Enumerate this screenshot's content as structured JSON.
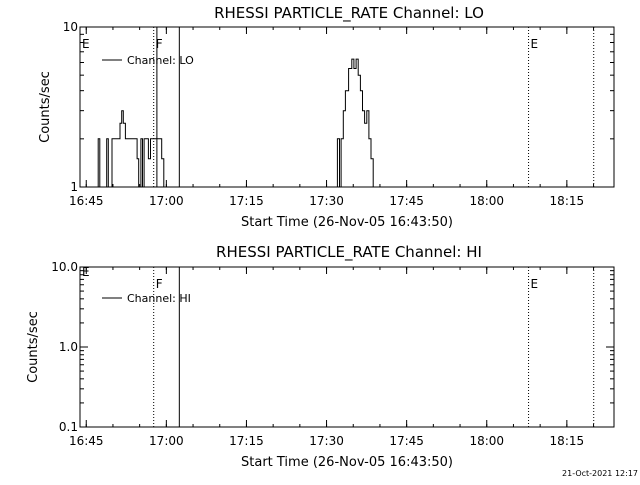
{
  "chart_data": [
    {
      "type": "line",
      "title": "RHESSI PARTICLE_RATE Channel: LO",
      "xlabel": "Start Time (26-Nov-05 16:43:50)",
      "ylabel": "Counts/sec",
      "y_scale": "log",
      "ylim": [
        1,
        10
      ],
      "y_ticks": [
        {
          "value": 1,
          "label": "1"
        },
        {
          "value": 10,
          "label": "10"
        }
      ],
      "x_range_min": [
        0,
        100
      ],
      "x_ticks": [
        {
          "value": 1.17,
          "label": "16:45"
        },
        {
          "value": 16.17,
          "label": "17:00"
        },
        {
          "value": 31.17,
          "label": "17:15"
        },
        {
          "value": 46.17,
          "label": "17:30"
        },
        {
          "value": 61.17,
          "label": "17:45"
        },
        {
          "value": 76.17,
          "label": "18:00"
        },
        {
          "value": 91.17,
          "label": "18:15"
        }
      ],
      "legend": {
        "label": "Channel: LO",
        "placement": "top-left"
      },
      "markers": [
        {
          "x": 13.8,
          "label": "F",
          "style": "dotted"
        },
        {
          "x": 14.4,
          "label": "",
          "style": "solid"
        },
        {
          "x": 18.6,
          "label": "",
          "style": "solid"
        },
        {
          "x": 84.0,
          "label": "E",
          "style": "dotted"
        },
        {
          "x": 96.2,
          "label": "",
          "style": "dotted"
        }
      ],
      "edge_marker_label": "E",
      "series": [
        {
          "x": [
            0,
            3.4,
            3.4,
            3.7,
            3.7,
            4.0,
            4.0,
            5.0,
            5.0,
            5.3,
            5.3,
            6.0,
            6.0,
            6.3,
            6.3,
            7.5,
            7.5,
            7.8,
            7.8,
            8.1,
            8.1,
            8.5,
            8.5,
            8.8,
            8.8,
            10.4,
            10.4,
            10.7,
            10.7,
            11.0,
            11.0,
            11.4,
            11.4,
            11.7,
            11.7,
            12.0,
            12.0,
            12.5,
            12.5,
            12.8,
            12.8,
            13.2,
            13.2,
            14.9,
            14.9,
            15.3,
            15.3,
            15.7,
            15.7,
            16.0,
            16.0,
            17.5,
            17.5,
            17.9,
            17.9,
            48.2,
            48.2,
            48.6,
            48.6,
            48.9,
            48.9,
            49.3,
            49.3,
            49.7,
            49.7,
            50.3,
            50.3,
            50.9,
            50.9,
            51.3,
            51.3,
            51.7,
            51.7,
            52.1,
            52.1,
            52.5,
            52.5,
            52.9,
            52.9,
            53.3,
            53.3,
            53.7,
            53.7,
            54.1,
            54.1,
            54.5,
            54.5,
            54.9,
            54.9,
            55.8,
            55.8,
            100
          ],
          "y": [
            1,
            1,
            2,
            2,
            1,
            1,
            1,
            1,
            2,
            2,
            1,
            1,
            2,
            2,
            2,
            2,
            2.5,
            2.5,
            3,
            3,
            2.5,
            2.5,
            2,
            2,
            2,
            2,
            2,
            2,
            1.5,
            1.5,
            1,
            1,
            2,
            2,
            1,
            1,
            2,
            2,
            2,
            2,
            1.5,
            1.5,
            2,
            2,
            2,
            2,
            1.5,
            1.5,
            1,
            1,
            1,
            1,
            1,
            1,
            1,
            1,
            2,
            2,
            1,
            1,
            2,
            2,
            3,
            3,
            4,
            4,
            5.5,
            5.5,
            6.3,
            6.3,
            5.5,
            5.5,
            6.3,
            6.3,
            5,
            5,
            4,
            4,
            3,
            3,
            2.5,
            2.5,
            3,
            3,
            2,
            2,
            1.5,
            1.5,
            1,
            1,
            1,
            1
          ]
        }
      ]
    },
    {
      "type": "line",
      "title": "RHESSI PARTICLE_RATE Channel: HI",
      "xlabel": "Start Time (26-Nov-05 16:43:50)",
      "ylabel": "Counts/sec",
      "y_scale": "log",
      "ylim": [
        0.1,
        10
      ],
      "y_ticks": [
        {
          "value": 0.1,
          "label": "0.1"
        },
        {
          "value": 1,
          "label": "1.0"
        },
        {
          "value": 10,
          "label": "10.0"
        }
      ],
      "x_range_min": [
        0,
        100
      ],
      "x_ticks": [
        {
          "value": 1.17,
          "label": "16:45"
        },
        {
          "value": 16.17,
          "label": "17:00"
        },
        {
          "value": 31.17,
          "label": "17:15"
        },
        {
          "value": 46.17,
          "label": "17:30"
        },
        {
          "value": 61.17,
          "label": "17:45"
        },
        {
          "value": 76.17,
          "label": "18:00"
        },
        {
          "value": 91.17,
          "label": "18:15"
        }
      ],
      "legend": {
        "label": "Channel: HI",
        "placement": "top-left"
      },
      "markers": [
        {
          "x": 13.8,
          "label": "F",
          "style": "dotted"
        },
        {
          "x": 18.6,
          "label": "",
          "style": "solid"
        },
        {
          "x": 84.0,
          "label": "E",
          "style": "dotted"
        },
        {
          "x": 96.2,
          "label": "",
          "style": "dotted"
        }
      ],
      "edge_marker_label": "E",
      "series": []
    }
  ],
  "footer": {
    "timestamp": "21-Oct-2021 12:17"
  },
  "colors": {
    "ink": "#000000",
    "background": "#ffffff"
  }
}
